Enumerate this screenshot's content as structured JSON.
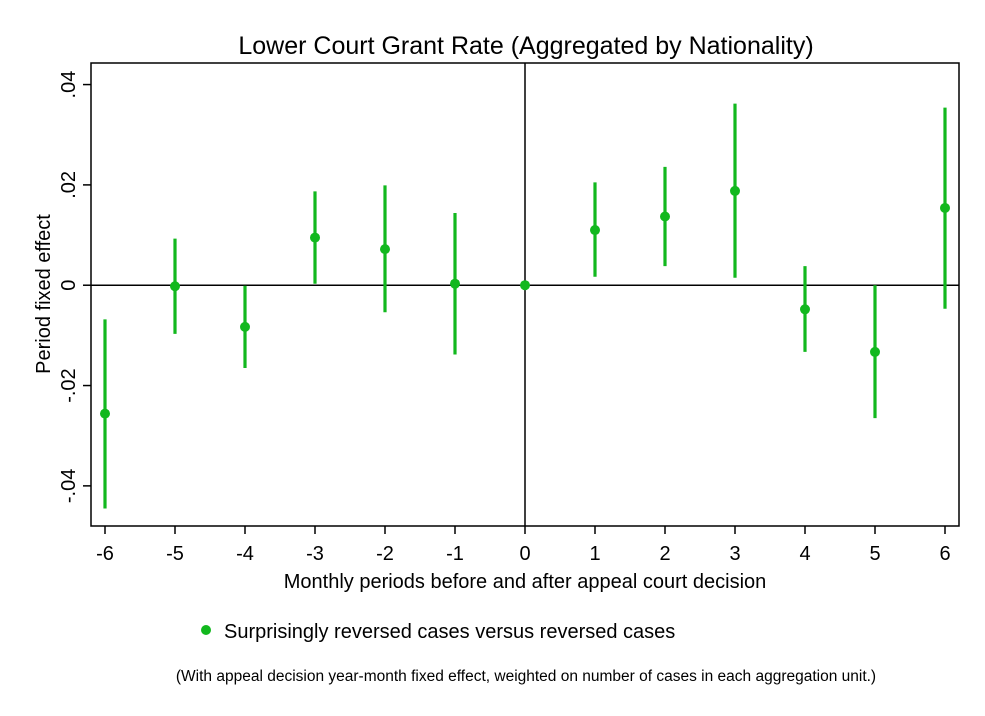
{
  "chart_data": {
    "type": "scatter",
    "title": "Lower Court Grant Rate (Aggregated by Nationality)",
    "xlabel": "Monthly periods before and after appeal court decision",
    "ylabel": "Period fixed effect",
    "x_ticks": [
      "-6",
      "-5",
      "-4",
      "-3",
      "-2",
      "-1",
      "0",
      "1",
      "2",
      "3",
      "4",
      "5",
      "6"
    ],
    "y_ticks": [
      ".04",
      ".02",
      "0",
      "-.02",
      "-.04"
    ],
    "y_tick_values": [
      0.04,
      0.02,
      0,
      -0.02,
      -0.04
    ],
    "xlim": [
      -6.2,
      6.2
    ],
    "ylim": [
      -0.048,
      0.0443
    ],
    "reference_lines": {
      "x": 0,
      "y": 0
    },
    "grid": false,
    "legend_position": "bottom",
    "color": "#12b81e",
    "series": [
      {
        "name": "Surprisingly reversed cases versus reversed cases",
        "x": [
          -6,
          -5,
          -4,
          -3,
          -2,
          -1,
          0,
          1,
          2,
          3,
          4,
          5,
          6
        ],
        "y": [
          -0.0256,
          -0.0002,
          -0.0083,
          0.0095,
          0.0072,
          0.0003,
          0.0,
          0.011,
          0.0137,
          0.0188,
          -0.0048,
          -0.0133,
          0.0154
        ],
        "ci_low": [
          -0.0445,
          -0.0097,
          -0.0165,
          0.0003,
          -0.0054,
          -0.0138,
          0.0,
          0.0017,
          0.0038,
          0.0015,
          -0.0133,
          -0.0265,
          -0.0047
        ],
        "ci_high": [
          -0.0068,
          0.0093,
          -0.0001,
          0.0187,
          0.0199,
          0.0144,
          0.0,
          0.0205,
          0.0236,
          0.0362,
          0.0038,
          0.0,
          0.0354
        ]
      }
    ],
    "note": "(With appeal decision year-month fixed effect, weighted on number of cases in each aggregation unit.)"
  }
}
